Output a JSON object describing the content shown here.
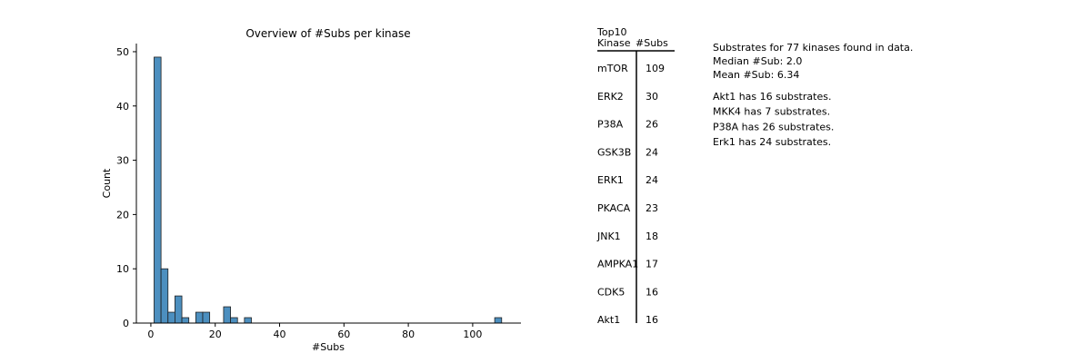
{
  "chart_data": {
    "type": "bar",
    "title": "Overview of #Subs per kinase",
    "xlabel": "#Subs",
    "ylabel": "Count",
    "xlim": [
      -4.5,
      115
    ],
    "ylim": [
      0,
      51.5
    ],
    "xticks": [
      0,
      20,
      40,
      60,
      80,
      100
    ],
    "yticks": [
      0,
      10,
      20,
      30,
      40,
      50
    ],
    "bar_color": "#4c8fbf",
    "grid": false,
    "bins": [
      {
        "x0": 1.0,
        "x1": 3.16,
        "count": 49
      },
      {
        "x0": 3.16,
        "x1": 5.32,
        "count": 10
      },
      {
        "x0": 5.32,
        "x1": 7.48,
        "count": 2
      },
      {
        "x0": 7.48,
        "x1": 9.64,
        "count": 5
      },
      {
        "x0": 9.64,
        "x1": 11.8,
        "count": 1
      },
      {
        "x0": 13.96,
        "x1": 16.12,
        "count": 2
      },
      {
        "x0": 16.12,
        "x1": 18.28,
        "count": 2
      },
      {
        "x0": 22.6,
        "x1": 24.76,
        "count": 3
      },
      {
        "x0": 24.76,
        "x1": 26.92,
        "count": 1
      },
      {
        "x0": 29.08,
        "x1": 31.24,
        "count": 1
      },
      {
        "x0": 106.84,
        "x1": 109.0,
        "count": 1
      }
    ]
  },
  "table": {
    "header_top": "Top10",
    "header_kinase": "Kinase",
    "header_subs": "#Subs",
    "rows": [
      {
        "kinase": "mTOR",
        "subs": "109"
      },
      {
        "kinase": "ERK2",
        "subs": "30"
      },
      {
        "kinase": "P38A",
        "subs": "26"
      },
      {
        "kinase": "GSK3B",
        "subs": "24"
      },
      {
        "kinase": "ERK1",
        "subs": "24"
      },
      {
        "kinase": "PKACA",
        "subs": "23"
      },
      {
        "kinase": "JNK1",
        "subs": "18"
      },
      {
        "kinase": "AMPKA1",
        "subs": "17"
      },
      {
        "kinase": "CDK5",
        "subs": "16"
      },
      {
        "kinase": "Akt1",
        "subs": "16"
      }
    ]
  },
  "notes": {
    "summary": [
      "Substrates for 77 kinases found in data.",
      "Median #Sub: 2.0",
      "Mean #Sub: 6.34"
    ],
    "details": [
      "Akt1 has 16 substrates.",
      "MKK4 has 7 substrates.",
      "P38A has 26 substrates.",
      "Erk1 has 24 substrates."
    ]
  }
}
